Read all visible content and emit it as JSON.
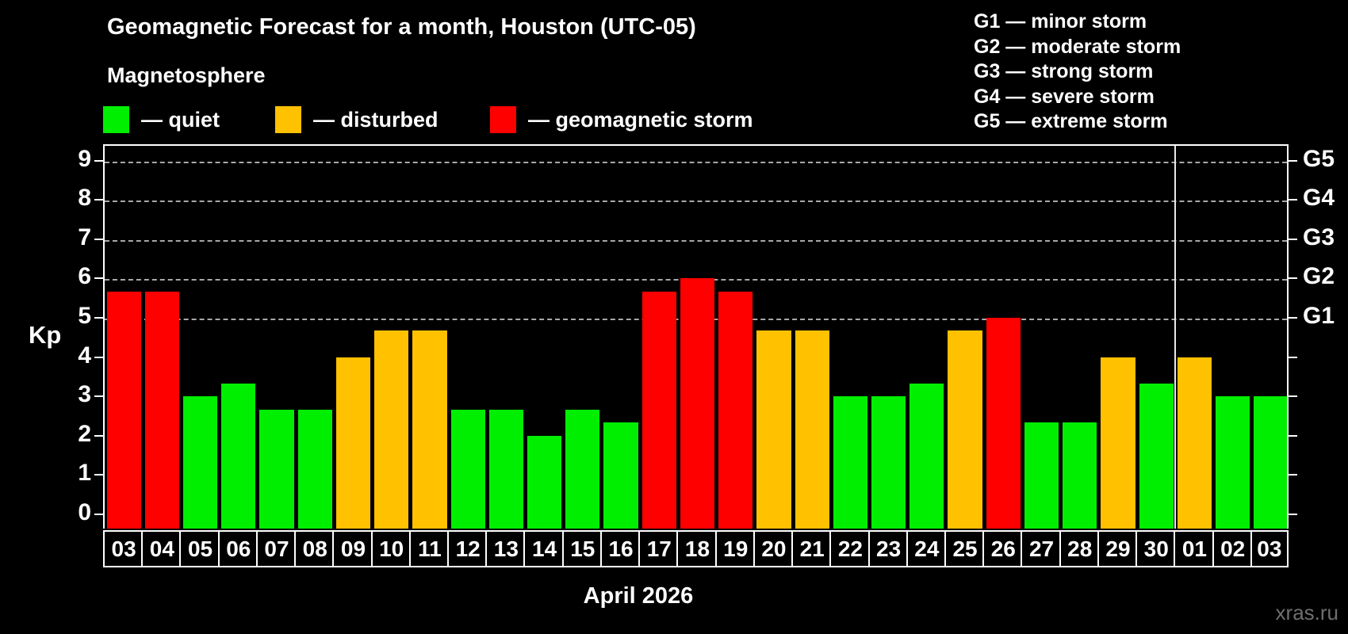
{
  "title": "Geomagnetic Forecast for a month, Houston (UTC-05)",
  "subtitle": "Magnetosphere",
  "legend": {
    "items": [
      {
        "key": "quiet",
        "label": "— quiet"
      },
      {
        "key": "disturbed",
        "label": "— disturbed"
      },
      {
        "key": "storm",
        "label": "— geomagnetic storm"
      }
    ]
  },
  "g_legend": [
    "G1 — minor storm",
    "G2 — moderate storm",
    "G3 — strong storm",
    "G4 — severe storm",
    "G5 — extreme storm"
  ],
  "axes": {
    "y_label": "Kp",
    "y_ticks": [
      0,
      1,
      2,
      3,
      4,
      5,
      6,
      7,
      8,
      9
    ],
    "g_labels": [
      {
        "text": "G1",
        "kp": 5
      },
      {
        "text": "G2",
        "kp": 6
      },
      {
        "text": "G3",
        "kp": 7
      },
      {
        "text": "G4",
        "kp": 8
      },
      {
        "text": "G5",
        "kp": 9
      }
    ],
    "month_label": "April 2026"
  },
  "colors": {
    "quiet": "#00ef00",
    "disturbed": "#ffc100",
    "storm": "#fe0000",
    "grid": "#a8a8a8",
    "axis": "#ffffff",
    "watermark": "#6f6f6f"
  },
  "watermark": "xras.ru",
  "chart_data": {
    "type": "bar",
    "title": "Geomagnetic Forecast for a month, Houston (UTC-05)",
    "xlabel": "April 2026",
    "ylabel": "Kp",
    "ylim": [
      0,
      9
    ],
    "gridlines_at": [
      5,
      6,
      7,
      8,
      9
    ],
    "legend_position": "top",
    "month_separator_after_index": 27,
    "categories": [
      "03",
      "04",
      "05",
      "06",
      "07",
      "08",
      "09",
      "10",
      "11",
      "12",
      "13",
      "14",
      "15",
      "16",
      "17",
      "18",
      "19",
      "20",
      "21",
      "22",
      "23",
      "24",
      "25",
      "26",
      "27",
      "28",
      "29",
      "30",
      "01",
      "02",
      "03"
    ],
    "values": [
      5.67,
      5.67,
      3,
      3.33,
      2.67,
      2.67,
      4,
      4.67,
      4.67,
      2.67,
      2.67,
      2,
      2.67,
      2.33,
      5.67,
      6,
      5.67,
      4.67,
      4.67,
      3,
      3,
      3.33,
      4.67,
      5,
      2.33,
      2.33,
      4,
      3.33,
      4,
      3,
      3
    ],
    "status": [
      "storm",
      "storm",
      "quiet",
      "quiet",
      "quiet",
      "quiet",
      "disturbed",
      "disturbed",
      "disturbed",
      "quiet",
      "quiet",
      "quiet",
      "quiet",
      "quiet",
      "storm",
      "storm",
      "storm",
      "disturbed",
      "disturbed",
      "quiet",
      "quiet",
      "quiet",
      "disturbed",
      "storm",
      "quiet",
      "quiet",
      "disturbed",
      "quiet",
      "disturbed",
      "quiet",
      "quiet"
    ]
  }
}
